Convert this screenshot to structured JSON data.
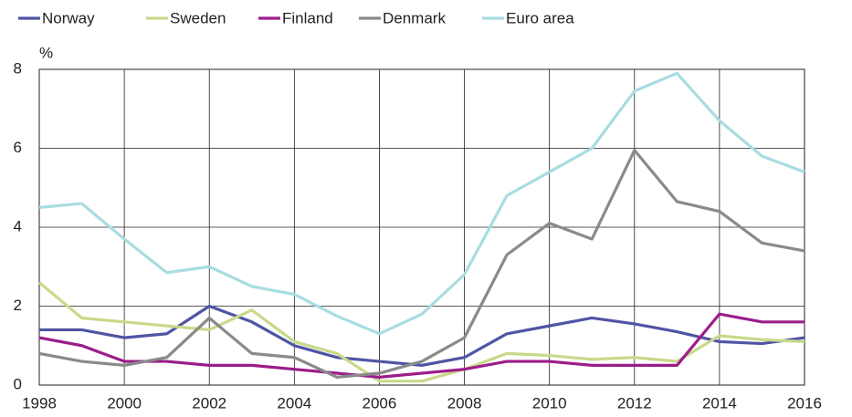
{
  "chart_data": {
    "type": "line",
    "y_label": "%",
    "x": [
      1998,
      1999,
      2000,
      2001,
      2002,
      2003,
      2004,
      2005,
      2006,
      2007,
      2008,
      2009,
      2010,
      2011,
      2012,
      2013,
      2014,
      2015,
      2016
    ],
    "series": [
      {
        "name": "Norway",
        "color": "#4f55a3",
        "values": [
          1.4,
          1.4,
          1.2,
          1.3,
          2.0,
          1.6,
          1.0,
          0.7,
          0.6,
          0.5,
          0.7,
          1.3,
          1.5,
          1.7,
          1.55,
          1.35,
          1.1,
          1.05,
          1.2
        ]
      },
      {
        "name": "Sweden",
        "color": "#c8d98a",
        "values": [
          2.6,
          1.7,
          1.6,
          1.5,
          1.4,
          1.9,
          1.1,
          0.8,
          0.1,
          0.1,
          0.4,
          0.8,
          0.75,
          0.65,
          0.7,
          0.6,
          1.25,
          1.15,
          1.1
        ]
      },
      {
        "name": "Finland",
        "color": "#9c1d8a",
        "values": [
          1.2,
          1.0,
          0.6,
          0.6,
          0.5,
          0.5,
          0.4,
          0.3,
          0.2,
          0.3,
          0.4,
          0.6,
          0.6,
          0.5,
          0.5,
          0.5,
          1.8,
          1.6,
          1.6
        ]
      },
      {
        "name": "Denmark",
        "color": "#8a8a8a",
        "values": [
          0.8,
          0.6,
          0.5,
          0.7,
          1.7,
          0.8,
          0.7,
          0.2,
          0.3,
          0.6,
          1.2,
          3.3,
          4.1,
          3.7,
          5.95,
          4.65,
          4.4,
          3.6,
          3.4
        ]
      },
      {
        "name": "Euro area",
        "color": "#a8dde0",
        "values": [
          4.5,
          4.6,
          3.7,
          2.85,
          3.0,
          2.5,
          2.3,
          1.75,
          1.3,
          1.8,
          2.8,
          4.8,
          5.4,
          6.0,
          7.45,
          7.9,
          6.7,
          5.8,
          5.4
        ]
      }
    ],
    "xlim": [
      1998,
      2016
    ],
    "xticks": [
      1998,
      2000,
      2002,
      2004,
      2006,
      2008,
      2010,
      2012,
      2014,
      2016
    ],
    "ylim": [
      0,
      8
    ],
    "yticks": [
      0,
      2,
      4,
      6,
      8
    ],
    "grid": true,
    "legend": "top"
  }
}
